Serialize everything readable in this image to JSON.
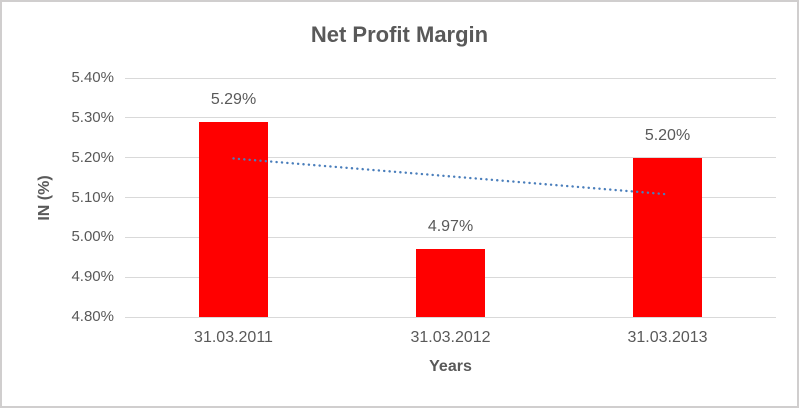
{
  "frame": {
    "background": "#FFFFFF",
    "border_color": "#D0CECE"
  },
  "chart_data": {
    "type": "bar",
    "title": "Net Profit Margin",
    "categories": [
      "31.03.2011",
      "31.03.2012",
      "31.03.2013"
    ],
    "values": [
      5.29,
      4.97,
      5.2
    ],
    "data_labels": [
      "5.29%",
      "4.97%",
      "5.20%"
    ],
    "xlabel": "Years",
    "ylabel": "IN (%)",
    "ylim": [
      4.8,
      5.4
    ],
    "ytick_step": 0.1,
    "yticks": [
      {
        "value": 5.4,
        "label": "5.40%"
      },
      {
        "value": 5.3,
        "label": "5.30%"
      },
      {
        "value": 5.2,
        "label": "5.20%"
      },
      {
        "value": 5.1,
        "label": "5.10%"
      },
      {
        "value": 5.0,
        "label": "5.00%"
      },
      {
        "value": 4.9,
        "label": "4.90%"
      },
      {
        "value": 4.8,
        "label": "4.80%"
      }
    ],
    "grid": true,
    "legend": "none",
    "colors": {
      "bar": "#FF0000",
      "text": "#595959",
      "gridline": "#D9D9D9",
      "trendline": "#4A7EBB"
    },
    "trendline": {
      "type": "linear",
      "style": "dotted",
      "fitted_values": [
        5.198,
        5.153,
        5.108
      ]
    }
  }
}
